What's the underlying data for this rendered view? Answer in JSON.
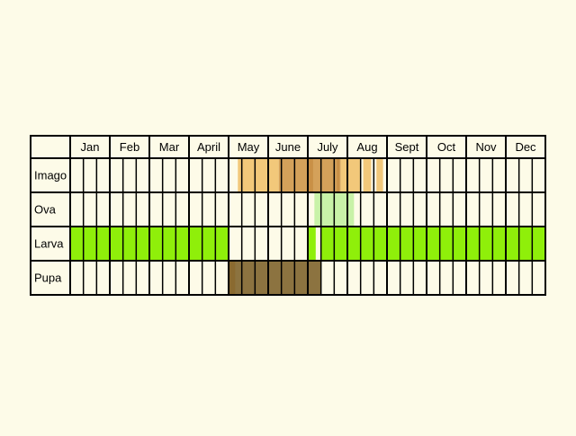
{
  "chart_data": {
    "type": "table",
    "months": [
      "Jan",
      "Feb",
      "Mar",
      "April",
      "May",
      "June",
      "July",
      "Aug",
      "Sept",
      "Oct",
      "Nov",
      "Dec"
    ],
    "periods_per_month": 3,
    "stages": [
      {
        "name": "Imago",
        "bands": [
          {
            "from": 12.7,
            "to": 15.8,
            "color": "#f2c87a"
          },
          {
            "from": 15.8,
            "to": 20.5,
            "color": "#d4a15a"
          },
          {
            "from": 20.5,
            "to": 22.0,
            "color": "#f2c87a"
          },
          {
            "from": 22.2,
            "to": 22.8,
            "color": "#f2c87a"
          },
          {
            "from": 23.2,
            "to": 23.7,
            "color": "#f2c87a"
          },
          {
            "from": 18.0,
            "to": 18.4,
            "color": "#c99046"
          },
          {
            "from": 20.2,
            "to": 20.4,
            "color": "#c99046"
          }
        ]
      },
      {
        "name": "Ova",
        "bands": [
          {
            "from": 18.5,
            "to": 21.5,
            "color": "#c8f2a8"
          }
        ]
      },
      {
        "name": "Larva",
        "bands": [
          {
            "from": 0,
            "to": 12.0,
            "color": "#8fef0a"
          },
          {
            "from": 18.0,
            "to": 18.6,
            "color": "#8fef0a"
          },
          {
            "from": 19.0,
            "to": 36.0,
            "color": "#8fef0a"
          }
        ]
      },
      {
        "name": "Pupa",
        "bands": [
          {
            "from": 12.0,
            "to": 19.0,
            "color": "#8c7340"
          },
          {
            "from": 12.0,
            "to": 12.5,
            "color": "#8a6a30"
          }
        ]
      }
    ],
    "colors": {
      "background": "#fdfbe8",
      "grid": "#000000",
      "imago_light": "#f2c87a",
      "imago_dark": "#d4a15a",
      "ova": "#c8f2a8",
      "larva": "#8fef0a",
      "pupa": "#8c7340"
    }
  }
}
